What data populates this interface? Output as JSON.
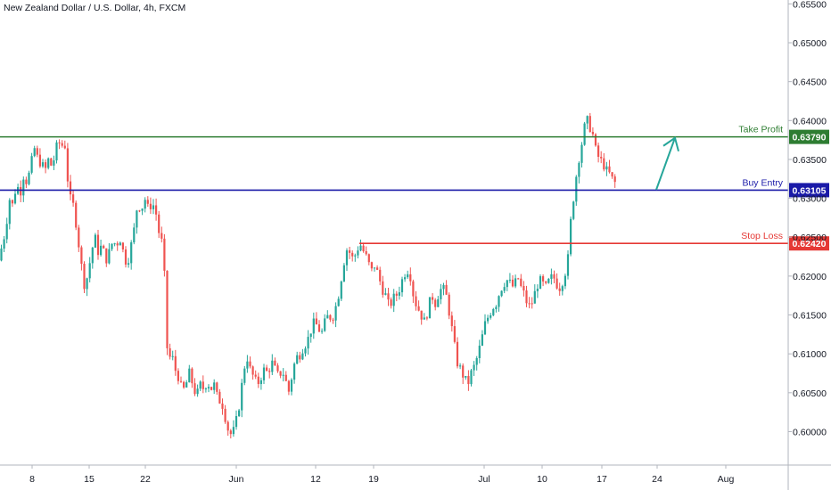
{
  "header": {
    "symbol_title": "New Zealand Dollar / U.S. Dollar, 4h, FXCM"
  },
  "colors": {
    "up_candle": "#26a69a",
    "down_candle": "#ef5350",
    "take_profit": "#2e7d32",
    "buy_entry": "#1a1aa8",
    "stop_loss": "#e53935",
    "arrow": "#26a69a",
    "axis_line": "#b2b5be",
    "text": "#131722"
  },
  "chart_data": {
    "type": "candlestick",
    "title": "New Zealand Dollar / U.S. Dollar, 4h, FXCM",
    "ylim": [
      0.5957,
      0.6555
    ],
    "grid": false,
    "y_axis": {
      "side": "right",
      "ticks": [
        "0.60000",
        "0.60500",
        "0.61000",
        "0.61500",
        "0.62000",
        "0.62500",
        "0.63000",
        "0.63500",
        "0.64000",
        "0.64500",
        "0.65000",
        "0.65500"
      ]
    },
    "x_axis": {
      "ticks": [
        "8",
        "15",
        "22",
        "Jun",
        "12",
        "19",
        "Jul",
        "10",
        "17",
        "24",
        "Aug"
      ]
    },
    "levels": [
      {
        "name": "Take Profit",
        "value": "0.63790",
        "color": "#2e7d32"
      },
      {
        "name": "Buy Entry",
        "value": "0.63105",
        "color": "#1a1aa8"
      },
      {
        "name": "Stop Loss",
        "value": "0.62420",
        "color": "#e53935"
      }
    ],
    "projection_arrow": {
      "from": 0.6311,
      "to": 0.638
    },
    "path_points": [
      [
        0,
        0.622
      ],
      [
        4,
        0.624
      ],
      [
        8,
        0.626
      ],
      [
        12,
        0.63
      ],
      [
        16,
        0.629
      ],
      [
        20,
        0.632
      ],
      [
        24,
        0.6305
      ],
      [
        28,
        0.633
      ],
      [
        32,
        0.632
      ],
      [
        36,
        0.634
      ],
      [
        40,
        0.6365
      ],
      [
        44,
        0.635
      ],
      [
        48,
        0.6345
      ],
      [
        52,
        0.6335
      ],
      [
        56,
        0.635
      ],
      [
        60,
        0.634
      ],
      [
        64,
        0.636
      ],
      [
        67,
        0.6375
      ],
      [
        70,
        0.6365
      ],
      [
        74,
        0.6375
      ],
      [
        76,
        0.634
      ],
      [
        78,
        0.632
      ],
      [
        80,
        0.63
      ],
      [
        84,
        0.629
      ],
      [
        88,
        0.626
      ],
      [
        92,
        0.622
      ],
      [
        96,
        0.619
      ],
      [
        100,
        0.62
      ],
      [
        104,
        0.623
      ],
      [
        108,
        0.625
      ],
      [
        112,
        0.623
      ],
      [
        116,
        0.624
      ],
      [
        120,
        0.622
      ],
      [
        124,
        0.623
      ],
      [
        128,
        0.6245
      ],
      [
        132,
        0.624
      ],
      [
        136,
        0.625
      ],
      [
        140,
        0.623
      ],
      [
        144,
        0.6215
      ],
      [
        148,
        0.6235
      ],
      [
        152,
        0.626
      ],
      [
        156,
        0.6295
      ],
      [
        160,
        0.6285
      ],
      [
        164,
        0.63
      ],
      [
        168,
        0.6285
      ],
      [
        172,
        0.6295
      ],
      [
        176,
        0.6285
      ],
      [
        180,
        0.6255
      ],
      [
        184,
        0.624
      ],
      [
        186,
        0.62
      ],
      [
        188,
        0.613
      ],
      [
        190,
        0.609
      ],
      [
        194,
        0.61
      ],
      [
        198,
        0.608
      ],
      [
        202,
        0.607
      ],
      [
        206,
        0.605
      ],
      [
        210,
        0.606
      ],
      [
        214,
        0.6075
      ],
      [
        218,
        0.606
      ],
      [
        222,
        0.6045
      ],
      [
        226,
        0.606
      ],
      [
        230,
        0.6055
      ],
      [
        234,
        0.6065
      ],
      [
        238,
        0.6055
      ],
      [
        242,
        0.606
      ],
      [
        246,
        0.604
      ],
      [
        250,
        0.604
      ],
      [
        254,
        0.602
      ],
      [
        258,
        0.6
      ],
      [
        262,
        0.5995
      ],
      [
        266,
        0.601
      ],
      [
        270,
        0.6035
      ],
      [
        274,
        0.607
      ],
      [
        278,
        0.61
      ],
      [
        282,
        0.608
      ],
      [
        286,
        0.607
      ],
      [
        290,
        0.606
      ],
      [
        294,
        0.607
      ],
      [
        298,
        0.608
      ],
      [
        302,
        0.6075
      ],
      [
        306,
        0.609
      ],
      [
        310,
        0.608
      ],
      [
        314,
        0.607
      ],
      [
        318,
        0.608
      ],
      [
        322,
        0.6065
      ],
      [
        326,
        0.605
      ],
      [
        330,
        0.608
      ],
      [
        334,
        0.6095
      ],
      [
        338,
        0.61
      ],
      [
        342,
        0.611
      ],
      [
        346,
        0.6115
      ],
      [
        350,
        0.613
      ],
      [
        354,
        0.614
      ],
      [
        358,
        0.6135
      ],
      [
        362,
        0.6125
      ],
      [
        366,
        0.614
      ],
      [
        370,
        0.615
      ],
      [
        374,
        0.6145
      ],
      [
        378,
        0.616
      ],
      [
        382,
        0.618
      ],
      [
        386,
        0.621
      ],
      [
        390,
        0.6235
      ],
      [
        394,
        0.623
      ],
      [
        398,
        0.622
      ],
      [
        402,
        0.6235
      ],
      [
        406,
        0.624
      ],
      [
        410,
        0.623
      ],
      [
        414,
        0.622
      ],
      [
        418,
        0.6205
      ],
      [
        422,
        0.6215
      ],
      [
        426,
        0.62
      ],
      [
        430,
        0.6185
      ],
      [
        434,
        0.6175
      ],
      [
        438,
        0.616
      ],
      [
        442,
        0.617
      ],
      [
        446,
        0.6175
      ],
      [
        450,
        0.6185
      ],
      [
        454,
        0.62
      ],
      [
        458,
        0.621
      ],
      [
        462,
        0.62
      ],
      [
        466,
        0.617
      ],
      [
        470,
        0.616
      ],
      [
        474,
        0.615
      ],
      [
        478,
        0.614
      ],
      [
        482,
        0.616
      ],
      [
        486,
        0.6175
      ],
      [
        490,
        0.6165
      ],
      [
        494,
        0.618
      ],
      [
        498,
        0.6185
      ],
      [
        502,
        0.6175
      ],
      [
        506,
        0.615
      ],
      [
        510,
        0.612
      ],
      [
        514,
        0.609
      ],
      [
        518,
        0.608
      ],
      [
        522,
        0.607
      ],
      [
        526,
        0.606
      ],
      [
        530,
        0.6075
      ],
      [
        534,
        0.6085
      ],
      [
        538,
        0.61
      ],
      [
        542,
        0.612
      ],
      [
        546,
        0.614
      ],
      [
        550,
        0.615
      ],
      [
        554,
        0.616
      ],
      [
        558,
        0.6165
      ],
      [
        562,
        0.618
      ],
      [
        566,
        0.619
      ],
      [
        570,
        0.6195
      ],
      [
        574,
        0.619
      ],
      [
        578,
        0.6185
      ],
      [
        582,
        0.62
      ],
      [
        586,
        0.6185
      ],
      [
        590,
        0.6175
      ],
      [
        594,
        0.616
      ],
      [
        598,
        0.6165
      ],
      [
        602,
        0.618
      ],
      [
        606,
        0.6195
      ],
      [
        610,
        0.619
      ],
      [
        614,
        0.6185
      ],
      [
        618,
        0.6195
      ],
      [
        622,
        0.62
      ],
      [
        626,
        0.619
      ],
      [
        630,
        0.6185
      ],
      [
        634,
        0.62
      ],
      [
        638,
        0.6215
      ],
      [
        640,
        0.624
      ],
      [
        642,
        0.6275
      ],
      [
        644,
        0.6295
      ],
      [
        646,
        0.631
      ],
      [
        648,
        0.633
      ],
      [
        650,
        0.6345
      ],
      [
        652,
        0.636
      ],
      [
        654,
        0.637
      ],
      [
        656,
        0.6385
      ],
      [
        658,
        0.6395
      ],
      [
        660,
        0.64
      ],
      [
        662,
        0.6395
      ],
      [
        664,
        0.639
      ],
      [
        666,
        0.6385
      ],
      [
        668,
        0.637
      ],
      [
        670,
        0.636
      ],
      [
        674,
        0.635
      ],
      [
        678,
        0.6345
      ],
      [
        682,
        0.6335
      ],
      [
        686,
        0.633
      ],
      [
        690,
        0.632
      ]
    ]
  }
}
